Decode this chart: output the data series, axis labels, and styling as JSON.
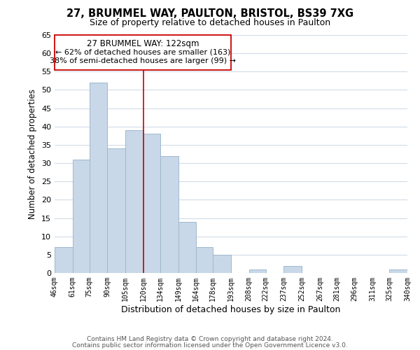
{
  "title": "27, BRUMMEL WAY, PAULTON, BRISTOL, BS39 7XG",
  "subtitle": "Size of property relative to detached houses in Paulton",
  "xlabel": "Distribution of detached houses by size in Paulton",
  "ylabel": "Number of detached properties",
  "bar_color": "#c8d8e8",
  "bar_edgecolor": "#a0b8cc",
  "vline_x": 120,
  "vline_color": "#cc0000",
  "bin_edges": [
    46,
    61,
    75,
    90,
    105,
    120,
    134,
    149,
    164,
    178,
    193,
    208,
    222,
    237,
    252,
    267,
    281,
    296,
    311,
    325,
    340
  ],
  "bin_labels": [
    "46sqm",
    "61sqm",
    "75sqm",
    "90sqm",
    "105sqm",
    "120sqm",
    "134sqm",
    "149sqm",
    "164sqm",
    "178sqm",
    "193sqm",
    "208sqm",
    "222sqm",
    "237sqm",
    "252sqm",
    "267sqm",
    "281sqm",
    "296sqm",
    "311sqm",
    "325sqm",
    "340sqm"
  ],
  "bar_heights": [
    7,
    31,
    52,
    34,
    39,
    38,
    32,
    14,
    7,
    5,
    0,
    1,
    0,
    2,
    0,
    0,
    0,
    0,
    0,
    1
  ],
  "ylim": [
    0,
    65
  ],
  "yticks": [
    0,
    5,
    10,
    15,
    20,
    25,
    30,
    35,
    40,
    45,
    50,
    55,
    60,
    65
  ],
  "annotation_title": "27 BRUMMEL WAY: 122sqm",
  "annotation_line1": "← 62% of detached houses are smaller (163)",
  "annotation_line2": "38% of semi-detached houses are larger (99) →",
  "footer1": "Contains HM Land Registry data © Crown copyright and database right 2024.",
  "footer2": "Contains public sector information licensed under the Open Government Licence v3.0.",
  "background_color": "#ffffff",
  "grid_color": "#d0dce8"
}
